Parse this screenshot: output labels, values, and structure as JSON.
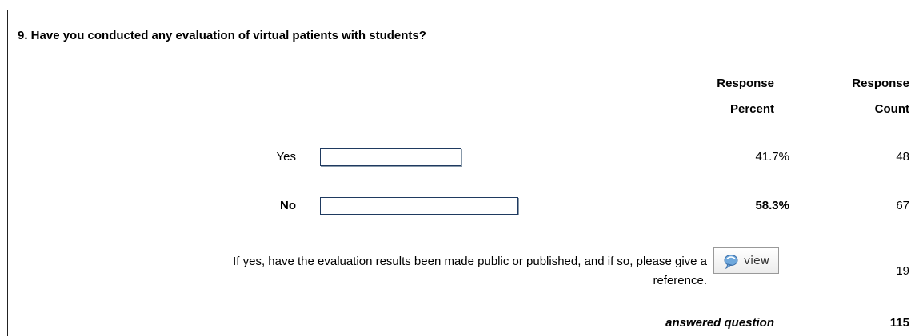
{
  "question": {
    "title": "9. Have you conducted any evaluation of virtual patients with students?",
    "headers": {
      "percent": [
        "Response",
        "Percent"
      ],
      "count": [
        "Response",
        "Count"
      ]
    },
    "rows": [
      {
        "label": "Yes",
        "percent": 41.7,
        "percent_label": "41.7%",
        "count": 48,
        "bold": false
      },
      {
        "label": "No",
        "percent": 58.3,
        "percent_label": "58.3%",
        "count": 67,
        "bold": true
      }
    ],
    "open_ended": {
      "label": [
        "If yes, have the evaluation results been made public or published, and if so, please give a",
        "reference."
      ],
      "button": "view",
      "count": 19
    },
    "footer": {
      "label": "answered question",
      "count": 115
    }
  }
}
